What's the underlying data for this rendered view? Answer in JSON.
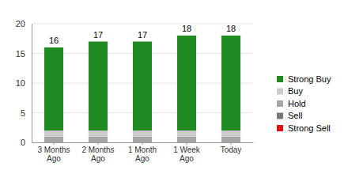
{
  "chart_data": {
    "type": "bar",
    "stacked": true,
    "categories": [
      "3 Months\nAgo",
      "2 Months\nAgo",
      "1 Month\nAgo",
      "1 Week\nAgo",
      "Today"
    ],
    "series": [
      {
        "name": "Strong Buy",
        "color": "#1f8a1f",
        "values": [
          14,
          15,
          15,
          16,
          16
        ]
      },
      {
        "name": "Buy",
        "color": "#cccccc",
        "values": [
          1,
          1,
          1,
          1,
          1
        ]
      },
      {
        "name": "Hold",
        "color": "#a6a6a6",
        "values": [
          1,
          1,
          1,
          1,
          1
        ]
      },
      {
        "name": "Sell",
        "color": "#777777",
        "values": [
          0,
          0,
          0,
          0,
          0
        ]
      },
      {
        "name": "Strong Sell",
        "color": "#dd1111",
        "values": [
          0,
          0,
          0,
          0,
          0
        ]
      }
    ],
    "totals": [
      16,
      17,
      17,
      18,
      18
    ],
    "ylim": [
      0,
      20
    ],
    "yticks": [
      0,
      5,
      10,
      15,
      20
    ],
    "grid": true,
    "legend": "right"
  }
}
